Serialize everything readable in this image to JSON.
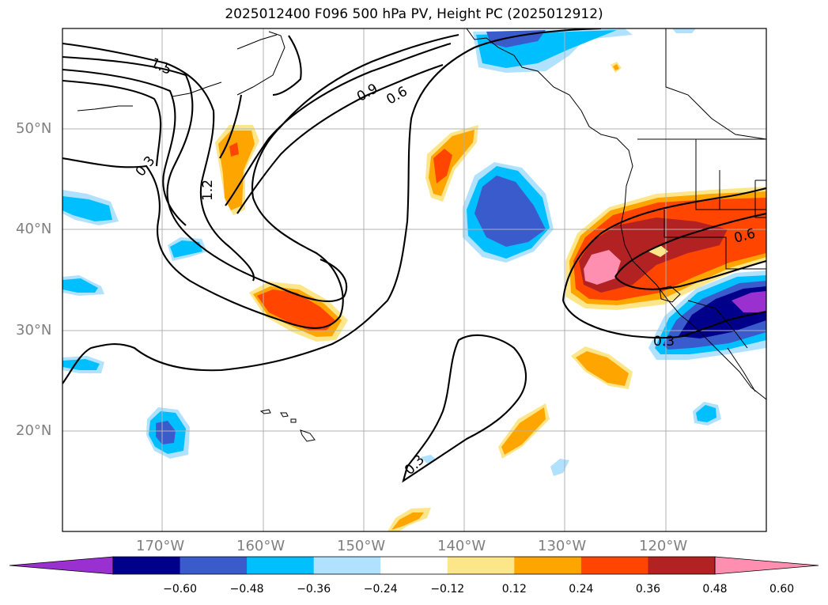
{
  "title": "2025012400 F096 500 hPa PV, Height PC (2025012912)",
  "axes": {
    "lat_labels": [
      "50°N",
      "40°N",
      "30°N",
      "20°N"
    ],
    "lon_labels": [
      "170°W",
      "160°W",
      "150°W",
      "140°W",
      "130°W",
      "120°W"
    ]
  },
  "contour_labels": [
    "1.5",
    "0.9",
    "0.6",
    "0.3",
    "1.2",
    "0.3",
    "0.6",
    "0.3"
  ],
  "colorbar": {
    "ticks": [
      "−0.60",
      "−0.48",
      "−0.36",
      "−0.24",
      "−0.12",
      "0.12",
      "0.24",
      "0.36",
      "0.48",
      "0.60"
    ],
    "colors": [
      "#9b30d0",
      "#00008b",
      "#3a5bcc",
      "#00bfff",
      "#b0e2ff",
      "#ffffff",
      "#fde68a",
      "#ffa500",
      "#ff4500",
      "#b22222",
      "#ff8fb0"
    ]
  }
}
